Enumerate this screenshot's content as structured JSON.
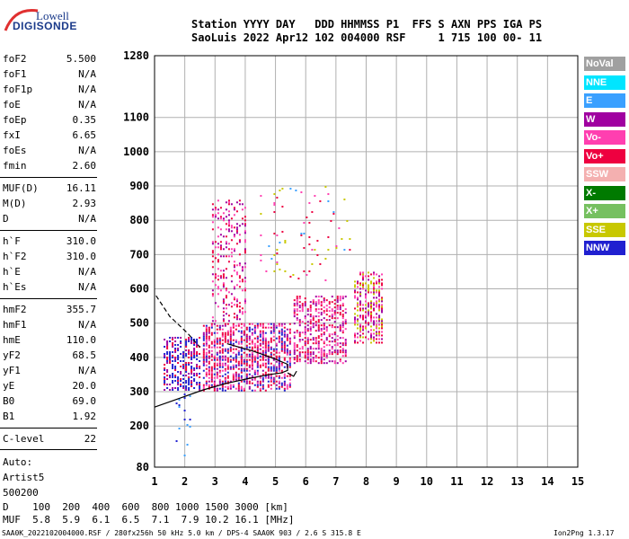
{
  "logo": {
    "line1": "Lowell",
    "line2": "DIGISONDE"
  },
  "header": {
    "row1": "Station YYYY DAY   DDD HHMMSS P1  FFS S AXN PPS IGA PS",
    "row2": "SaoLuis 2022 Apr12 102 004000 RSF     1 715 100 00- 11"
  },
  "params_group1": [
    {
      "name": "foF2",
      "value": "5.500"
    },
    {
      "name": "foF1",
      "value": "N/A"
    },
    {
      "name": "foF1p",
      "value": "N/A"
    },
    {
      "name": "foE",
      "value": "N/A"
    },
    {
      "name": "foEp",
      "value": "0.35"
    },
    {
      "name": "fxI",
      "value": "6.65"
    },
    {
      "name": "foEs",
      "value": "N/A"
    },
    {
      "name": "fmin",
      "value": "2.60"
    }
  ],
  "params_group2": [
    {
      "name": "MUF(D)",
      "value": "16.11"
    },
    {
      "name": "M(D)",
      "value": "2.93"
    },
    {
      "name": "D",
      "value": "N/A"
    }
  ],
  "params_group3": [
    {
      "name": "h`F",
      "value": "310.0"
    },
    {
      "name": "h`F2",
      "value": "310.0"
    },
    {
      "name": "h`E",
      "value": "N/A"
    },
    {
      "name": "h`Es",
      "value": "N/A"
    }
  ],
  "params_group4": [
    {
      "name": "hmF2",
      "value": "355.7"
    },
    {
      "name": "hmF1",
      "value": "N/A"
    },
    {
      "name": "hmE",
      "value": "110.0"
    },
    {
      "name": "yF2",
      "value": "68.5"
    },
    {
      "name": "yF1",
      "value": "N/A"
    },
    {
      "name": "yE",
      "value": "20.0"
    },
    {
      "name": "B0",
      "value": "69.0"
    },
    {
      "name": "B1",
      "value": "1.92"
    }
  ],
  "clevel": {
    "name": "C-level",
    "value": "22"
  },
  "scaler": [
    "Auto:",
    "Artist5",
    "500200"
  ],
  "legend": [
    {
      "label": "NoVal",
      "color": "#a0a0a0"
    },
    {
      "label": "NNE",
      "color": "#00e5ff"
    },
    {
      "label": "E",
      "color": "#3aa0ff"
    },
    {
      "label": "W",
      "color": "#a000a0"
    },
    {
      "label": "Vo-",
      "color": "#ff3fb0"
    },
    {
      "label": "Vo+",
      "color": "#ee0040"
    },
    {
      "label": "SSW",
      "color": "#f4b0b0"
    },
    {
      "label": "X-",
      "color": "#007a00"
    },
    {
      "label": "X+",
      "color": "#76c060"
    },
    {
      "label": "SSE",
      "color": "#c8c800"
    },
    {
      "label": "NNW",
      "color": "#2020d0"
    }
  ],
  "muf_table": {
    "row1": "D    100  200  400  600  800 1000 1500 3000 [km]",
    "row2": "MUF  5.8  5.9  6.1  6.5  7.1  7.9 10.2 16.1 [MHz]"
  },
  "footer": {
    "left": "SAA0K_2022102004000.RSF / 280fx256h 50 kHz 5.0 km / DPS-4 SAA0K 903 / 2.6 S 315.8 E",
    "right": "Ion2Png 1.3.17"
  },
  "chart_data": {
    "type": "scatter",
    "xlabel": "",
    "ylabel": "",
    "xlim": [
      1,
      15
    ],
    "ylim": [
      80,
      1280
    ],
    "x_ticks": [
      1,
      2,
      3,
      4,
      5,
      6,
      7,
      8,
      9,
      10,
      11,
      12,
      13,
      14,
      15
    ],
    "y_ticks": [
      80,
      200,
      300,
      400,
      500,
      600,
      700,
      800,
      900,
      1000,
      1100,
      1280
    ],
    "grid": true,
    "legend_position": "right",
    "clusters": [
      {
        "x": [
          1.3,
          2.6
        ],
        "y": [
          300,
          460
        ],
        "density": 0.55,
        "mix": [
          "#2020d0",
          "#ee0040",
          "#a000a0",
          "#2020d0"
        ]
      },
      {
        "x": [
          2.6,
          5.6
        ],
        "y": [
          300,
          500
        ],
        "density": 0.6,
        "mix": [
          "#ee0040",
          "#a000a0",
          "#ff3fb0",
          "#ee0040",
          "#2020d0"
        ]
      },
      {
        "x": [
          2.9,
          4.1
        ],
        "y": [
          500,
          860
        ],
        "density": 0.25,
        "mix": [
          "#a000a0",
          "#ff3fb0",
          "#ee0040"
        ]
      },
      {
        "x": [
          5.6,
          7.4
        ],
        "y": [
          380,
          580
        ],
        "density": 0.5,
        "mix": [
          "#ee0040",
          "#ff3fb0",
          "#a000a0"
        ]
      },
      {
        "x": [
          7.6,
          8.6
        ],
        "y": [
          440,
          650
        ],
        "density": 0.5,
        "mix": [
          "#ee0040",
          "#ff3fb0",
          "#c8c800",
          "#a000a0"
        ]
      },
      {
        "x": [
          4.4,
          7.6
        ],
        "y": [
          620,
          900
        ],
        "density": 0.04,
        "mix": [
          "#ee0040",
          "#ff3fb0",
          "#3aa0ff",
          "#c8c800"
        ]
      },
      {
        "x": [
          1.7,
          2.3
        ],
        "y": [
          100,
          300
        ],
        "density": 0.08,
        "mix": [
          "#2020d0",
          "#3aa0ff"
        ]
      }
    ],
    "trace_black": {
      "x": [
        1.0,
        1.8,
        2.6,
        3.4,
        4.2,
        4.8,
        5.2,
        5.4,
        5.4,
        5.0,
        4.6,
        4.2,
        3.8,
        3.4
      ],
      "y": [
        255,
        280,
        305,
        325,
        340,
        350,
        355,
        362,
        380,
        395,
        408,
        420,
        430,
        440
      ]
    },
    "trace_dashed": {
      "x": [
        1.05,
        1.5,
        2.1,
        2.5
      ],
      "y": [
        580,
        520,
        470,
        430
      ]
    },
    "trace_extra": {
      "x": [
        5.4,
        5.6,
        5.7
      ],
      "y": [
        355,
        345,
        360
      ]
    }
  }
}
